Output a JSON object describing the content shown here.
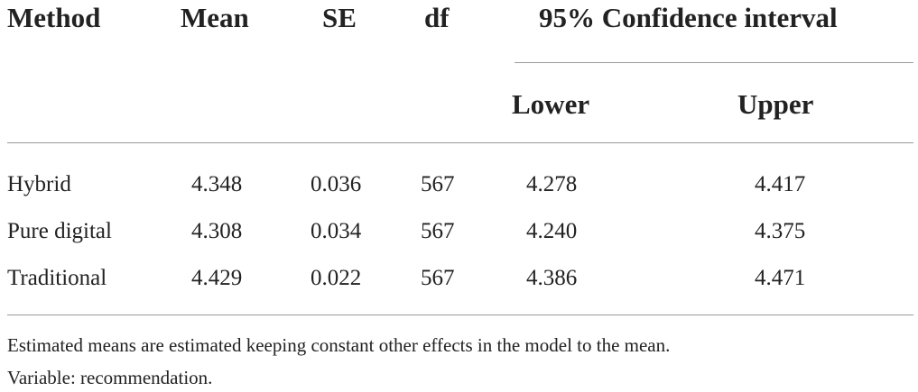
{
  "table": {
    "headers": {
      "method": "Method",
      "mean": "Mean",
      "se": "SE",
      "df": "df",
      "ci": "95% Confidence interval",
      "lower": "Lower",
      "upper": "Upper"
    },
    "rows": [
      {
        "method": "Hybrid",
        "mean": "4.348",
        "se": "0.036",
        "df": "567",
        "lower": "4.278",
        "upper": "4.417"
      },
      {
        "method": "Pure digital",
        "mean": "4.308",
        "se": "0.034",
        "df": "567",
        "lower": "4.240",
        "upper": "4.375"
      },
      {
        "method": "Traditional",
        "mean": "4.429",
        "se": "0.022",
        "df": "567",
        "lower": "4.386",
        "upper": "4.471"
      }
    ]
  },
  "footnotes": [
    "Estimated means are estimated keeping constant other effects in the model to the mean.",
    "Variable: recommendation."
  ]
}
